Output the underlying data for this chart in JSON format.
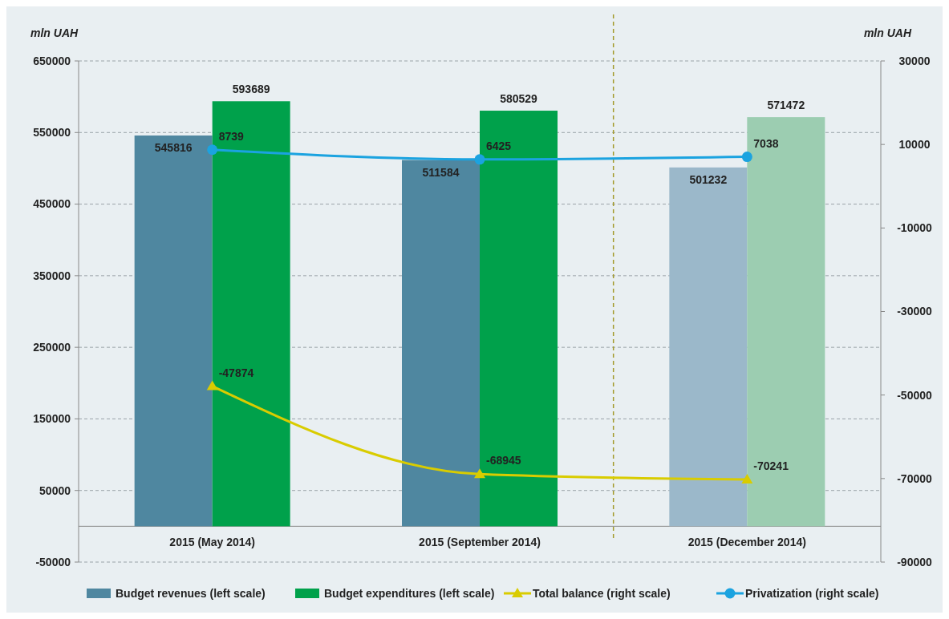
{
  "chart_data": {
    "type": "bar",
    "ylabel": "mln UAH",
    "y2label": "mln UAH",
    "categories": [
      "2015 (May 2014)",
      "2015 (September 2014)",
      "2015 (December 2014)"
    ],
    "series": [
      {
        "name": "Budget revenues (left scale)",
        "color": "#4f87a0",
        "colors": [
          "#4f87a0",
          "#4f87a0",
          "#9bb8ca"
        ],
        "values": [
          545816,
          511584,
          501232
        ]
      },
      {
        "name": "Budget expenditures (left scale)",
        "color": "#00a14b",
        "colors": [
          "#00a14b",
          "#00a14b",
          "#9ccdb1"
        ],
        "values": [
          593689,
          580529,
          571472
        ]
      },
      {
        "name": "Total balance (right scale)",
        "type": "line",
        "axis": "y2",
        "color": "#d9cc00",
        "marker": "triangle",
        "values": [
          -47874,
          -68945,
          -70241
        ]
      },
      {
        "name": "Privatization (right scale)",
        "type": "line",
        "axis": "y2",
        "color": "#1ba3e0",
        "marker": "circle",
        "values": [
          8739,
          6425,
          7038
        ]
      }
    ],
    "ylim": [
      -50000,
      650000
    ],
    "yticks": [
      -50000,
      50000,
      150000,
      250000,
      350000,
      450000,
      550000,
      650000
    ],
    "y2lim": [
      -90000,
      30000
    ],
    "y2ticks": [
      -90000,
      -70000,
      -50000,
      -30000,
      -10000,
      10000,
      30000
    ],
    "grid": "y",
    "legend": "bottom",
    "data_labels": true
  }
}
